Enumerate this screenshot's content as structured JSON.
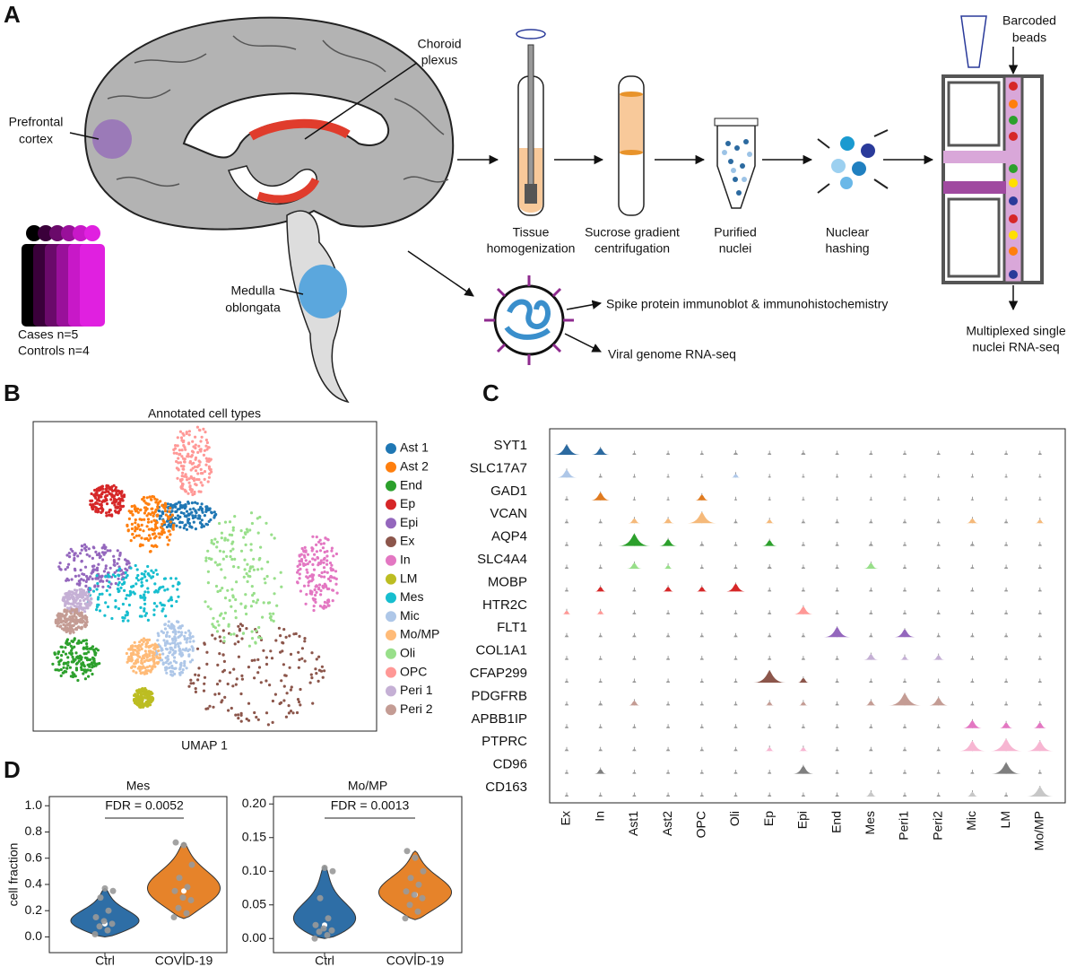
{
  "panel_labels": [
    "A",
    "B",
    "C",
    "D"
  ],
  "panel_a": {
    "choroid": [
      "Choroid",
      "plexus"
    ],
    "prefrontal": [
      "Prefrontal",
      "cortex"
    ],
    "medulla": [
      "Medulla",
      "oblongata"
    ],
    "cohort": [
      "Cases n=5",
      "Controls n=4"
    ],
    "steps": [
      [
        "Tissue",
        "homogenization"
      ],
      [
        "Sucrose gradient",
        "centrifugation"
      ],
      [
        "Purified",
        "nuclei"
      ],
      [
        "Nuclear",
        "hashing"
      ]
    ],
    "beads": [
      "Barcoded",
      "beads"
    ],
    "output": [
      "Multiplexed single",
      "nuclei RNA-seq"
    ],
    "virus": [
      "Spike protein immunoblot & immunohistochemistry",
      "Viral genome RNA-seq"
    ]
  },
  "panel_b": {
    "title": "Annotated cell types",
    "xlabel": "UMAP 1",
    "legend": [
      {
        "name": "Ast 1",
        "color": "#1f77b4"
      },
      {
        "name": "Ast 2",
        "color": "#ff7f0e"
      },
      {
        "name": "End",
        "color": "#2ca02c"
      },
      {
        "name": "Ep",
        "color": "#d62728"
      },
      {
        "name": "Epi",
        "color": "#9467bd"
      },
      {
        "name": "Ex",
        "color": "#8c564b"
      },
      {
        "name": "In",
        "color": "#e377c2"
      },
      {
        "name": "LM",
        "color": "#bcbd22"
      },
      {
        "name": "Mes",
        "color": "#17becf"
      },
      {
        "name": "Mic",
        "color": "#aec7e8"
      },
      {
        "name": "Mo/MP",
        "color": "#ffbb78"
      },
      {
        "name": "Oli",
        "color": "#98df8a"
      },
      {
        "name": "OPC",
        "color": "#ff9896"
      },
      {
        "name": "Peri 1",
        "color": "#c5b0d5"
      },
      {
        "name": "Peri 2",
        "color": "#c49c94"
      }
    ]
  },
  "panel_c": {
    "genes": [
      "SYT1",
      "SLC17A7",
      "GAD1",
      "VCAN",
      "AQP4",
      "SLC4A4",
      "MOBP",
      "HTR2C",
      "FLT1",
      "COL1A1",
      "CFAP299",
      "PDGFRB",
      "APBB1IP",
      "PTPRC",
      "CD96",
      "CD163"
    ],
    "colors": [
      "#2c6aa0",
      "#aec7e8",
      "#e07b20",
      "#f5b97a",
      "#2ca02c",
      "#98df8a",
      "#d62728",
      "#ff9896",
      "#9467bd",
      "#c5b0d5",
      "#8c564b",
      "#c49c94",
      "#e377c2",
      "#f7b6d2",
      "#7f7f7f",
      "#c7c7c7"
    ],
    "cell_types": [
      "Ex",
      "In",
      "Ast1",
      "Ast2",
      "OPC",
      "Oli",
      "Ep",
      "Epi",
      "End",
      "Mes",
      "Peri1",
      "Peri2",
      "Mic",
      "LM",
      "Mo/MP"
    ],
    "expression": [
      [
        0.8,
        0.5,
        0.05,
        0.05,
        0.05,
        0.1,
        0.05,
        0.1,
        0.05,
        0.05,
        0.05,
        0.05,
        0.05,
        0.05,
        0.05
      ],
      [
        0.6,
        0.05,
        0,
        0,
        0,
        0.2,
        0,
        0,
        0,
        0,
        0,
        0,
        0,
        0,
        0
      ],
      [
        0.05,
        0.6,
        0,
        0,
        0.4,
        0,
        0,
        0,
        0,
        0,
        0,
        0,
        0,
        0,
        0
      ],
      [
        0.05,
        0.05,
        0.3,
        0.3,
        0.9,
        0.05,
        0.2,
        0.05,
        0.05,
        0.05,
        0.05,
        0.05,
        0.3,
        0.05,
        0.2
      ],
      [
        0.05,
        0.05,
        1,
        0.5,
        0.1,
        0.05,
        0.4,
        0.05,
        0.05,
        0.1,
        0.05,
        0.05,
        0.1,
        0.05,
        0.05
      ],
      [
        0.05,
        0.05,
        0.4,
        0.2,
        0.05,
        0.05,
        0.1,
        0.05,
        0.05,
        0.4,
        0.05,
        0.05,
        0.05,
        0.05,
        0.05
      ],
      [
        0.05,
        0.3,
        0.05,
        0.3,
        0.3,
        0.6,
        0.05,
        0.05,
        0.05,
        0.05,
        0.05,
        0.05,
        0.05,
        0.05,
        0.05
      ],
      [
        0.2,
        0.2,
        0.05,
        0.05,
        0.05,
        0.05,
        0.05,
        0.6,
        0.05,
        0.05,
        0.05,
        0.05,
        0.05,
        0.05,
        0.05
      ],
      [
        0.05,
        0.05,
        0.05,
        0.05,
        0.05,
        0.05,
        0.05,
        0.05,
        0.8,
        0.05,
        0.6,
        0.05,
        0.05,
        0.05,
        0.05
      ],
      [
        0.05,
        0.05,
        0.05,
        0.05,
        0.05,
        0.05,
        0.05,
        0.05,
        0.05,
        0.4,
        0.2,
        0.3,
        0.05,
        0.05,
        0.05
      ],
      [
        0.05,
        0.05,
        0.05,
        0.05,
        0.05,
        0.05,
        1,
        0.3,
        0.05,
        0.05,
        0.05,
        0.05,
        0.05,
        0.05,
        0.05
      ],
      [
        0.05,
        0.1,
        0.3,
        0.05,
        0.05,
        0.05,
        0.2,
        0.2,
        0.05,
        0.3,
        1,
        0.6,
        0.05,
        0.05,
        0.05
      ],
      [
        0.05,
        0.05,
        0.05,
        0.05,
        0.05,
        0.05,
        0.05,
        0.05,
        0.05,
        0.05,
        0.05,
        0.05,
        0.6,
        0.4,
        0.4
      ],
      [
        0.05,
        0.05,
        0.05,
        0.05,
        0.05,
        0.05,
        0.2,
        0.2,
        0.05,
        0.05,
        0.05,
        0.05,
        0.8,
        1,
        0.8
      ],
      [
        0.05,
        0.3,
        0.05,
        0.05,
        0.05,
        0.05,
        0.05,
        0.6,
        0.05,
        0.05,
        0.05,
        0.05,
        0.05,
        0.9,
        0.05
      ],
      [
        0.05,
        0.05,
        0.05,
        0.05,
        0.05,
        0.05,
        0.05,
        0.05,
        0.05,
        0.3,
        0.05,
        0.05,
        0.3,
        0.05,
        0.8
      ]
    ]
  },
  "chart_data": [
    {
      "type": "violin",
      "title": "Mes",
      "ylabel": "cell fraction",
      "annotation": "FDR = 0.0052",
      "categories": [
        "Ctrl",
        "COVID-19"
      ],
      "colors": [
        "#2e6ea6",
        "#e6832a"
      ],
      "values": [
        0.1,
        0.35
      ],
      "ranges": [
        [
          0.0,
          0.37
        ],
        [
          0.14,
          0.72
        ]
      ],
      "points": [
        [
          0.02,
          0.05,
          0.08,
          0.1,
          0.12,
          0.15,
          0.2,
          0.3,
          0.35,
          0.37
        ],
        [
          0.15,
          0.18,
          0.22,
          0.28,
          0.3,
          0.35,
          0.38,
          0.45,
          0.55,
          0.7,
          0.72
        ]
      ],
      "ylim": [
        -0.12,
        1.07
      ],
      "yticks": [
        {
          "value": 0,
          "label": "0.0"
        },
        0.2,
        0.4,
        0.6,
        0.8,
        {
          "value": 1,
          "label": "1.0"
        }
      ]
    },
    {
      "type": "violin",
      "title": "Mo/MP",
      "annotation": "FDR = 0.0013",
      "categories": [
        "Ctrl",
        "COVID-19"
      ],
      "colors": [
        "#2e6ea6",
        "#e6832a"
      ],
      "values": [
        0.02,
        0.065
      ],
      "ranges": [
        [
          0.0,
          0.108
        ],
        [
          0.028,
          0.13
        ]
      ],
      "points": [
        [
          0.0,
          0.005,
          0.01,
          0.012,
          0.015,
          0.02,
          0.03,
          0.06,
          0.1,
          0.105
        ],
        [
          0.03,
          0.04,
          0.05,
          0.06,
          0.065,
          0.07,
          0.08,
          0.09,
          0.1,
          0.12,
          0.13
        ]
      ],
      "ylim": [
        -0.021,
        0.211
      ],
      "yticks": [
        {
          "value": 0,
          "label": "0.00"
        },
        {
          "value": 0.05,
          "label": "0.05"
        },
        {
          "value": 0.1,
          "label": "0.10"
        },
        {
          "value": 0.15,
          "label": "0.15"
        },
        {
          "value": 0.2,
          "label": "0.20"
        }
      ]
    }
  ]
}
